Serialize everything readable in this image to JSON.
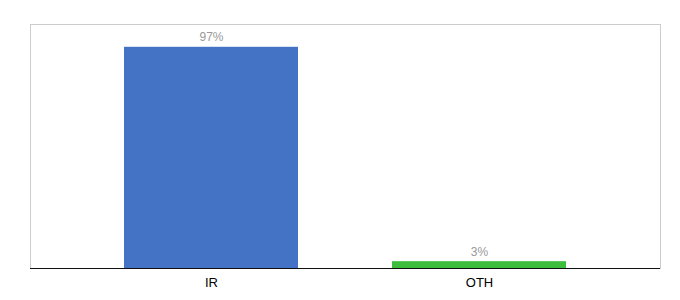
{
  "chart_data": {
    "type": "bar",
    "categories": [
      "IR",
      "OTH"
    ],
    "values": [
      97,
      3
    ],
    "value_labels": [
      "97%",
      "3%"
    ],
    "colors": [
      "#4472c4",
      "#3dbf3d"
    ],
    "ylim": [
      0,
      107
    ],
    "data_labels": true,
    "tick_labels": "x",
    "grid": false
  }
}
